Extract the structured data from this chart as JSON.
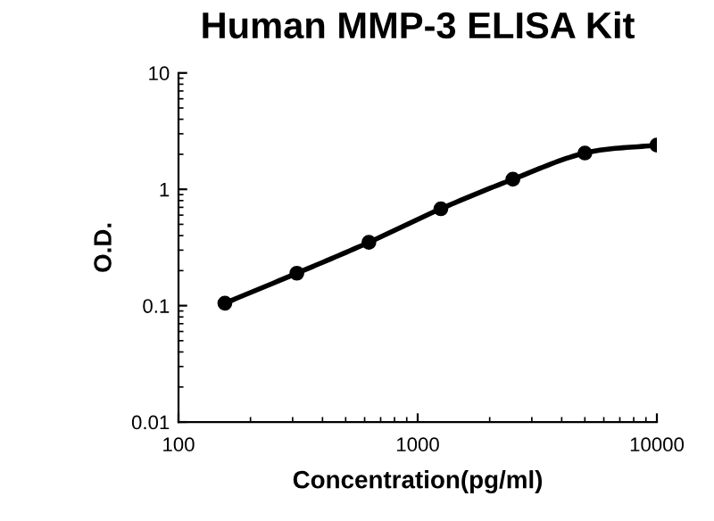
{
  "chart_data": {
    "type": "line",
    "title": "Human MMP-3 ELISA Kit",
    "xlabel": "Concentration(pg/ml)",
    "ylabel": "O.D.",
    "log": "xy",
    "x": [
      156.25,
      312.5,
      625,
      1250,
      2500,
      5000,
      10000
    ],
    "series": [
      {
        "color": "#000000",
        "values": [
          0.105,
          0.19,
          0.35,
          0.68,
          1.22,
          2.05,
          2.4
        ]
      }
    ],
    "xlim": [
      100,
      10000
    ],
    "xticks": [
      100,
      1000,
      10000
    ],
    "ylim": [
      0.01,
      10
    ],
    "yticks": [
      0.01,
      0.1,
      1,
      10
    ],
    "marker": "circle",
    "line_style": "solid",
    "grid": false,
    "legend": false
  }
}
